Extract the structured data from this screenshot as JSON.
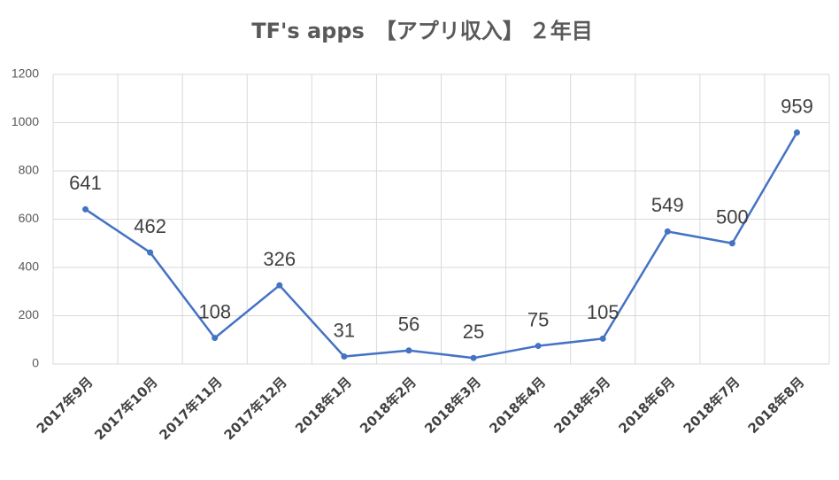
{
  "chart_data": {
    "type": "line",
    "title": "TF's apps　【アプリ収入】",
    "title_highlight": "２年目",
    "title_highlight_color": "#ff0000",
    "categories": [
      "2017年9月",
      "2017年10月",
      "2017年11月",
      "2017年12月",
      "2018年1月",
      "2018年2月",
      "2018年3月",
      "2018年4月",
      "2018年5月",
      "2018年6月",
      "2018年7月",
      "2018年8月"
    ],
    "values": [
      641,
      462,
      108,
      326,
      31,
      56,
      25,
      75,
      105,
      549,
      500,
      959
    ],
    "color": "#4472c4",
    "ylim": [
      0,
      1200
    ],
    "yticks": [
      0,
      200,
      400,
      600,
      800,
      1000,
      1200
    ],
    "grid": true
  }
}
